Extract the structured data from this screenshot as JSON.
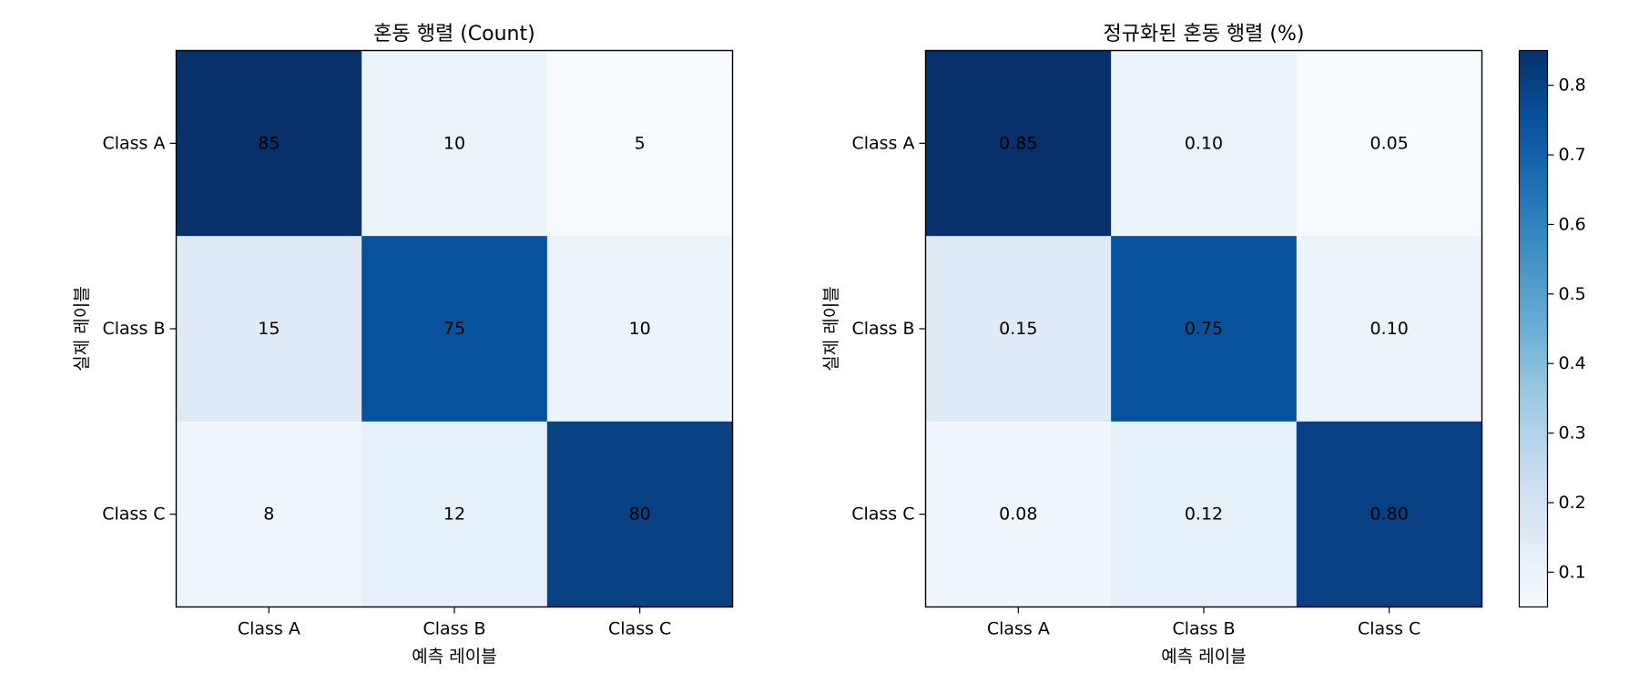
{
  "chart_data": [
    {
      "type": "heatmap",
      "title": "혼동 행렬 (Count)",
      "xlabel": "예측 레이블",
      "ylabel": "실제 레이블",
      "x_categories": [
        "Class A",
        "Class B",
        "Class C"
      ],
      "y_categories": [
        "Class A",
        "Class B",
        "Class C"
      ],
      "values": [
        [
          85,
          10,
          5
        ],
        [
          15,
          75,
          10
        ],
        [
          8,
          12,
          80
        ]
      ],
      "value_labels": [
        [
          "85",
          "10",
          "5"
        ],
        [
          "15",
          "75",
          "10"
        ],
        [
          "8",
          "12",
          "80"
        ]
      ],
      "colormap": "Blues",
      "vmin": 5,
      "vmax": 85,
      "colorbar": false
    },
    {
      "type": "heatmap",
      "title": "정규화된 혼동 행렬 (%)",
      "xlabel": "예측 레이블",
      "ylabel": "실제 레이블",
      "x_categories": [
        "Class A",
        "Class B",
        "Class C"
      ],
      "y_categories": [
        "Class A",
        "Class B",
        "Class C"
      ],
      "values": [
        [
          0.85,
          0.1,
          0.05
        ],
        [
          0.15,
          0.75,
          0.1
        ],
        [
          0.08,
          0.12,
          0.8
        ]
      ],
      "value_labels": [
        [
          "0.85",
          "0.10",
          "0.05"
        ],
        [
          "0.15",
          "0.75",
          "0.10"
        ],
        [
          "0.08",
          "0.12",
          "0.80"
        ]
      ],
      "colormap": "Blues",
      "vmin": 0.05,
      "vmax": 0.85,
      "colorbar": true,
      "colorbar_ticks": [
        0.1,
        0.2,
        0.3,
        0.4,
        0.5,
        0.6,
        0.7,
        0.8
      ],
      "colorbar_tick_labels": [
        "0.1",
        "0.2",
        "0.3",
        "0.4",
        "0.5",
        "0.6",
        "0.7",
        "0.8"
      ]
    }
  ]
}
